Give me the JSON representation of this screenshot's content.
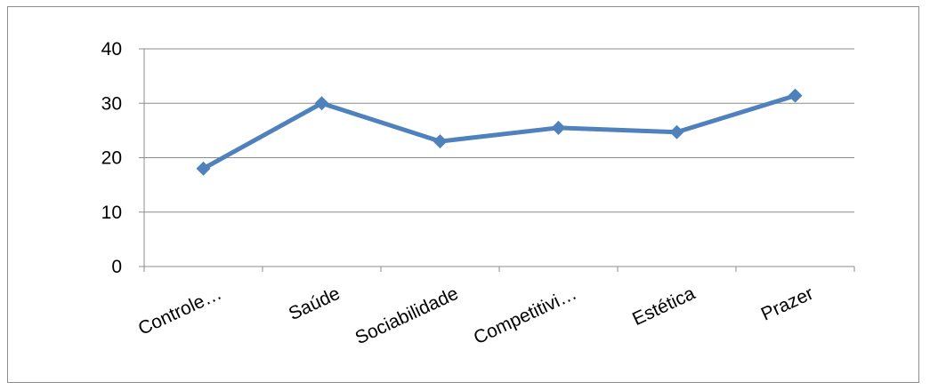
{
  "chart_data": {
    "type": "line",
    "title": "",
    "xlabel": "",
    "ylabel": "",
    "categories": [
      "Controle…",
      "Saúde",
      "Sociabilidade",
      "Competitivi…",
      "Estética",
      "Prazer"
    ],
    "series": [
      {
        "values": [
          18,
          30,
          23,
          25.5,
          24.7,
          31.4
        ],
        "color": "#4f81bd",
        "marker": "diamond"
      }
    ],
    "ylim": [
      0,
      40
    ],
    "yticks": [
      0,
      10,
      20,
      30,
      40
    ],
    "grid": true,
    "legend": "none"
  }
}
